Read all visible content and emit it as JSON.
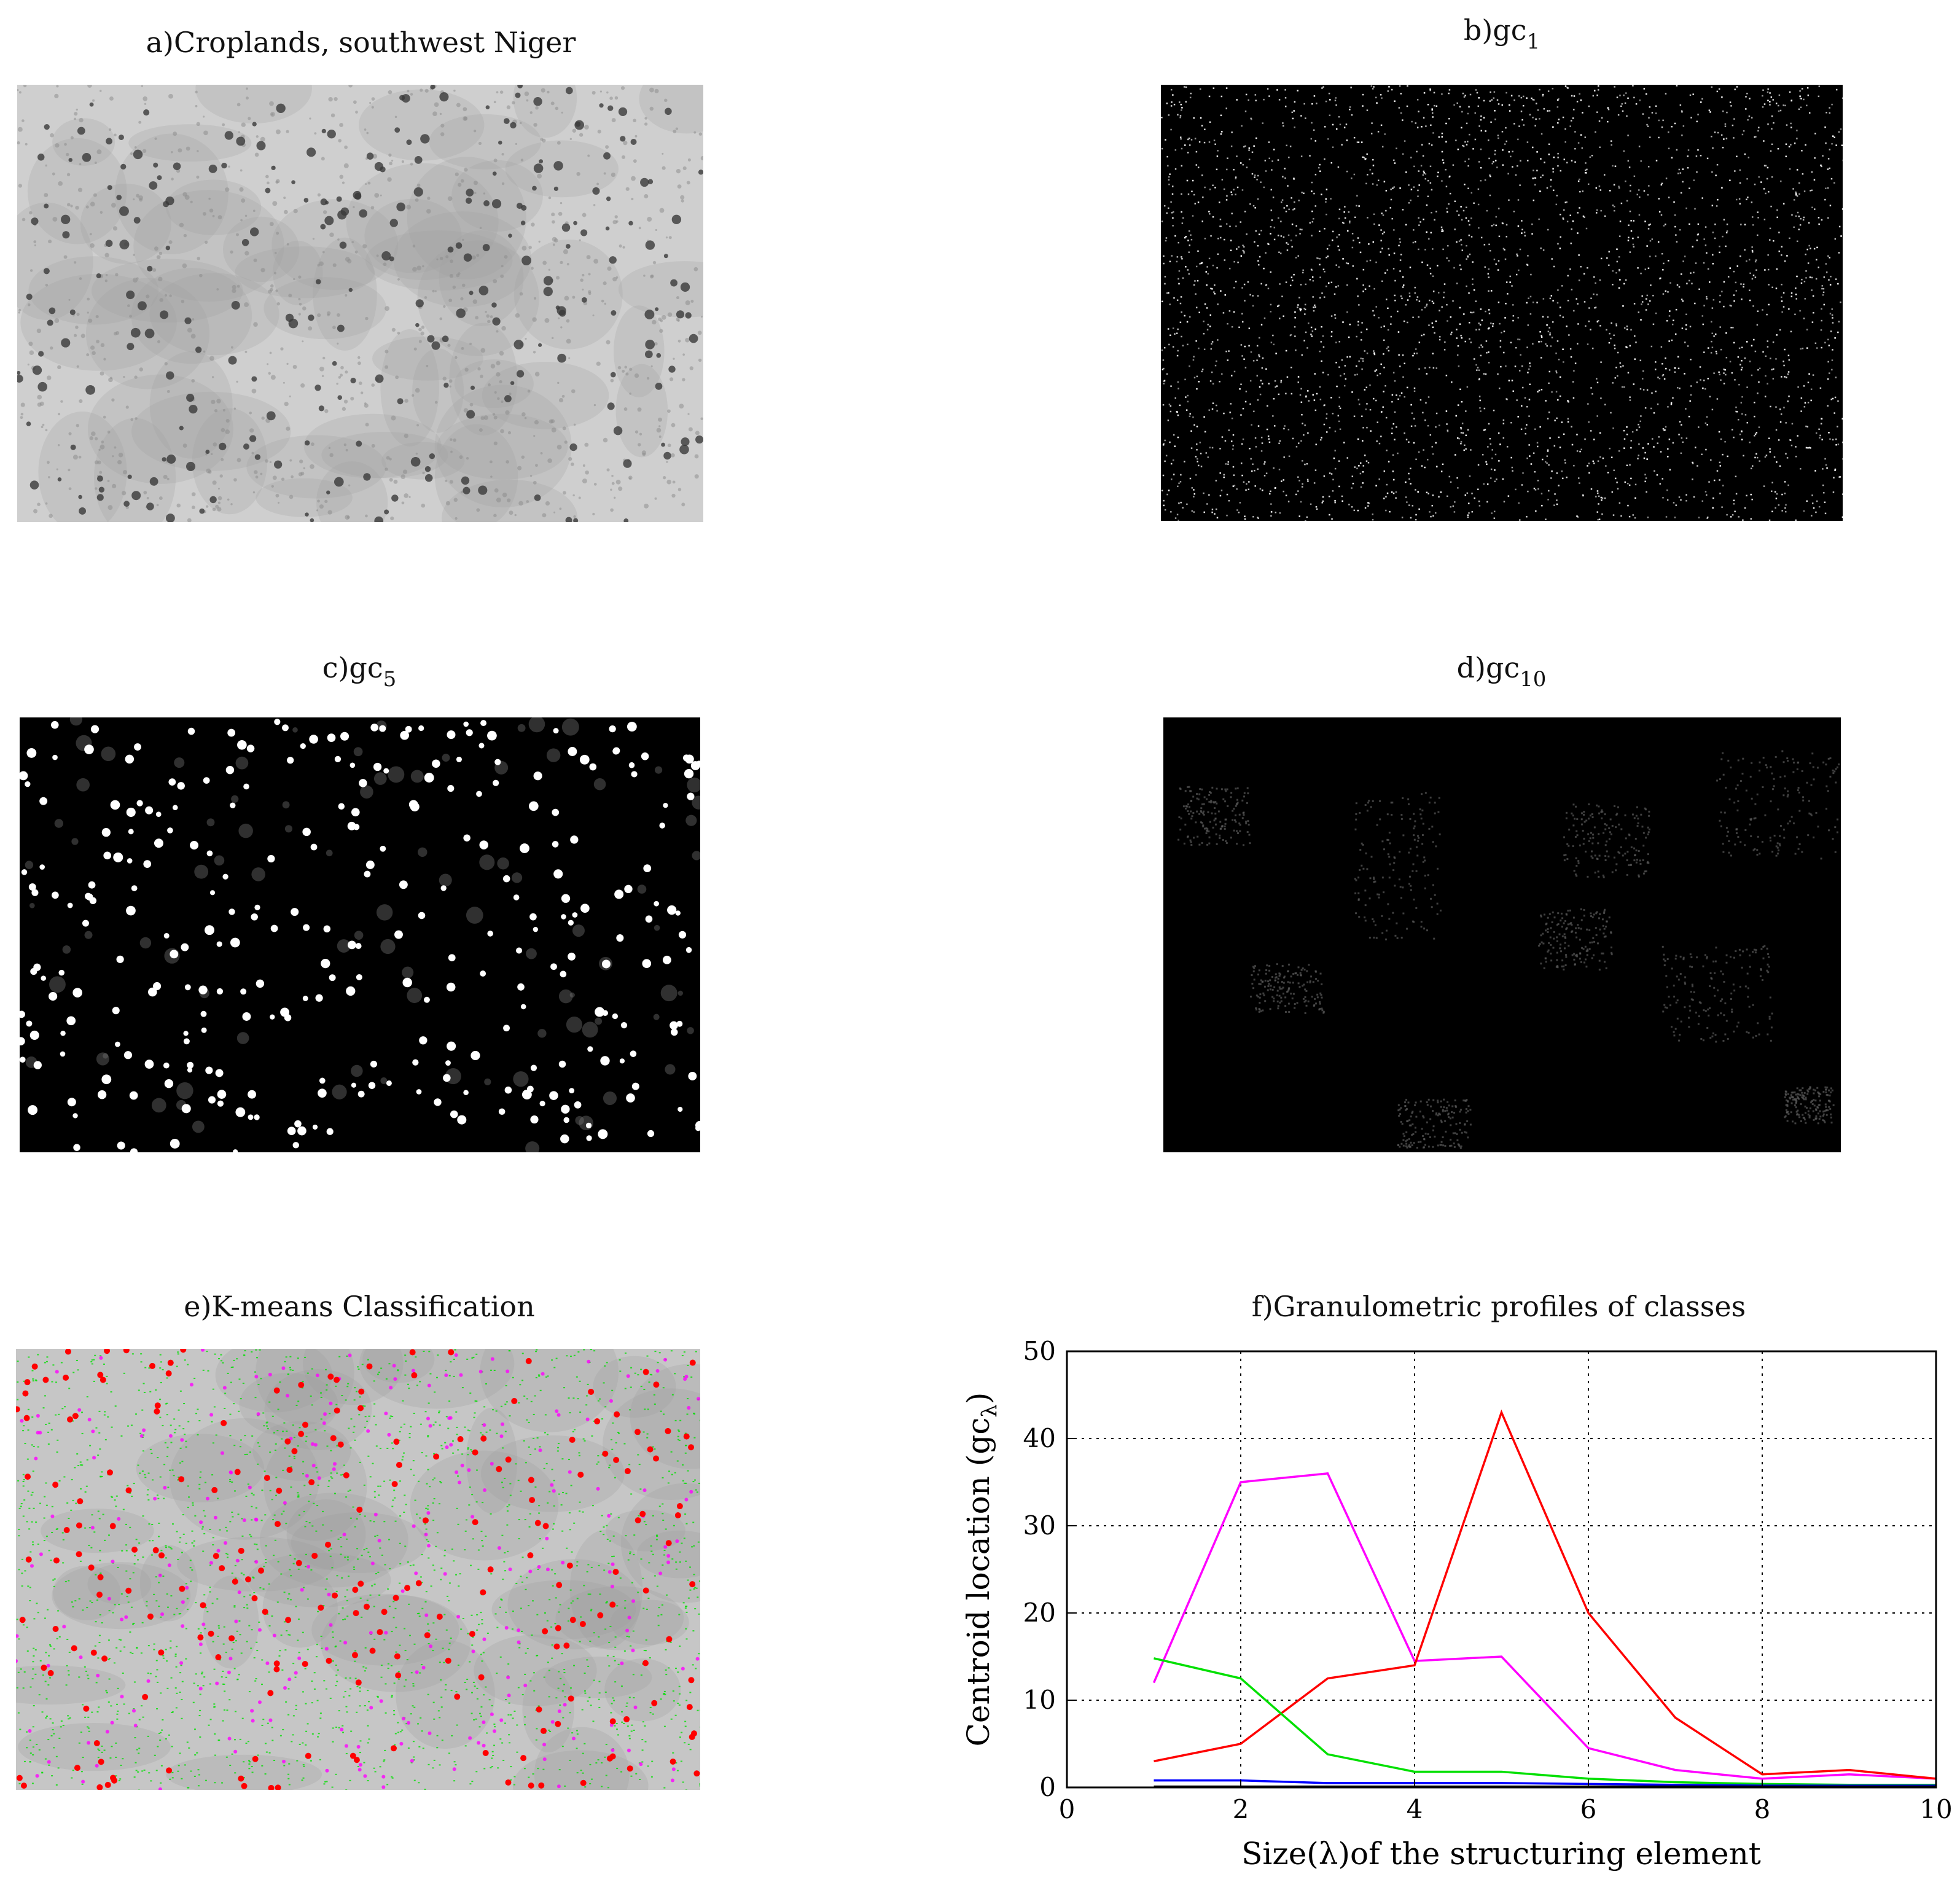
{
  "panels": {
    "a": {
      "title": "a)Croplands, southwest Niger"
    },
    "b": {
      "title_main": "b)gc",
      "title_sub": "1"
    },
    "c": {
      "title_main": "c)gc",
      "title_sub": "5"
    },
    "d": {
      "title_main": "d)gc",
      "title_sub": "10"
    },
    "e": {
      "title": "e)K-means Classification"
    }
  },
  "colors": {
    "magenta": "#ff00ff",
    "red": "#ff0000",
    "green": "#00e000",
    "blue": "#0000ff",
    "black": "#000000"
  },
  "chart_data": {
    "type": "line",
    "title": "f)Granulometric profiles of classes",
    "xlabel": "Size(λ)of the structuring element",
    "ylabel": "Centroid location (gc",
    "ylabel_sub": "λ",
    "ylabel_close": ")",
    "xlim": [
      0,
      10
    ],
    "ylim": [
      0,
      50
    ],
    "xticks": [
      "0",
      "2",
      "4",
      "6",
      "8",
      "10"
    ],
    "yticks": [
      "0",
      "10",
      "20",
      "30",
      "40",
      "50"
    ],
    "grid": true,
    "x": [
      1,
      2,
      3,
      4,
      5,
      6,
      7,
      8,
      9,
      10
    ],
    "series": [
      {
        "color": "#ff00ff",
        "values": [
          12,
          35,
          36,
          14.5,
          15,
          4.5,
          2,
          1,
          1.5,
          1
        ]
      },
      {
        "color": "#ff0000",
        "values": [
          3,
          5,
          12.5,
          14,
          43,
          20,
          8,
          1.5,
          2,
          1
        ]
      },
      {
        "color": "#00e000",
        "values": [
          14.8,
          12.5,
          3.8,
          1.8,
          1.8,
          1,
          0.6,
          0.4,
          0.3,
          0.3
        ]
      },
      {
        "color": "#0000ff",
        "values": [
          0.8,
          0.8,
          0.5,
          0.5,
          0.5,
          0.4,
          0.3,
          0.2,
          0.2,
          0.2
        ]
      },
      {
        "color": "#000000",
        "values": [
          0.1,
          0.1,
          0.1,
          0.1,
          0.1,
          0.1,
          0.1,
          0.1,
          0.1,
          0.1
        ]
      }
    ]
  }
}
